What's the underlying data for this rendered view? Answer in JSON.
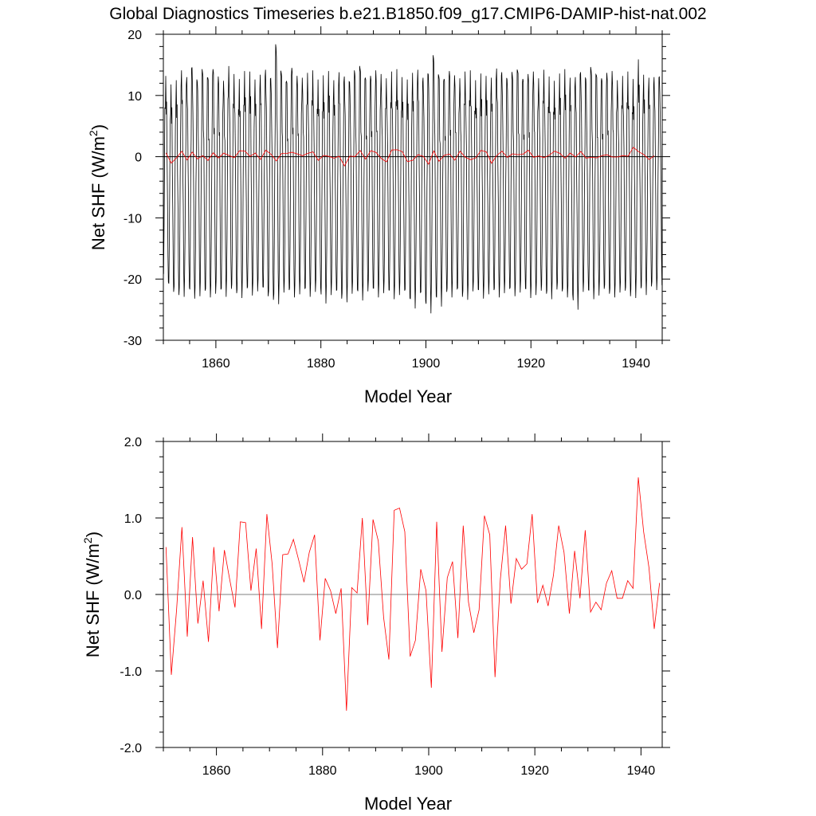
{
  "title": "Global Diagnostics Timeseries b.e21.B1850.f09_g17.CMIP6-DAMIP-hist-nat.002",
  "colors": {
    "monthly": "#000000",
    "annual": "#ff0000",
    "zero_line": "#000000"
  },
  "chart_data": [
    {
      "type": "line",
      "xlabel": "Model Year",
      "ylabel_main": "Net SHF (W/m",
      "ylabel_sup": "2",
      "ylabel_close": ")",
      "xlim": [
        1850,
        1945
      ],
      "ylim": [
        -30,
        20
      ],
      "x_ticks": [
        1860,
        1880,
        1900,
        1920,
        1940
      ],
      "x_tick_labels": [
        "1860",
        "1880",
        "1900",
        "1920",
        "1940"
      ],
      "y_ticks": [
        -30,
        -20,
        -10,
        0,
        10,
        20
      ],
      "y_tick_labels": [
        "-30",
        "-20",
        "-10",
        "0",
        "10",
        "20"
      ],
      "reference_line": 0,
      "monthly_series": {
        "start_year": 1850,
        "years": 95,
        "annual_max": [
          13.2,
          11.8,
          12.5,
          14.1,
          13.0,
          14.6,
          12.2,
          13.8,
          12.9,
          14.3,
          13.1,
          12.4,
          14.8,
          13.5,
          12.7,
          14.0,
          13.9,
          12.6,
          13.4,
          14.2,
          12.8,
          17.8,
          13.6,
          12.3,
          14.5,
          13.2,
          12.9,
          13.7,
          14.1,
          12.6,
          13.3,
          14.0,
          12.5,
          13.8,
          13.1,
          12.2,
          13.6,
          14.4,
          12.9,
          13.2,
          14.1,
          13.5,
          12.8,
          13.9,
          14.3,
          13.0,
          12.6,
          13.7,
          14.2,
          12.9,
          13.4,
          16.0,
          13.1,
          12.7,
          14.0,
          13.3,
          12.8,
          13.9,
          14.1,
          12.5,
          13.6,
          13.2,
          12.9,
          14.4,
          13.8,
          12.6,
          13.3,
          14.0,
          12.7,
          13.5,
          13.9,
          12.8,
          14.2,
          13.1,
          12.4,
          13.6,
          14.3,
          12.9,
          13.0,
          13.8,
          12.6,
          14.1,
          13.3,
          12.8,
          13.7,
          14.0,
          12.5,
          13.2,
          13.9,
          12.7,
          15.9,
          13.4,
          12.9,
          13.0,
          13.1
        ],
        "annual_min": [
          -20.5,
          -22.1,
          -22.6,
          -22.9,
          -21.4,
          -23.2,
          -22.8,
          -21.9,
          -23.0,
          -22.4,
          -21.7,
          -22.9,
          -21.6,
          -22.3,
          -23.1,
          -21.5,
          -22.7,
          -22.0,
          -21.3,
          -22.8,
          -23.4,
          -24.1,
          -22.2,
          -21.8,
          -23.0,
          -22.5,
          -21.6,
          -22.9,
          -22.1,
          -21.4,
          -24.0,
          -22.6,
          -21.9,
          -23.2,
          -23.8,
          -22.4,
          -21.7,
          -23.5,
          -22.0,
          -21.5,
          -23.0,
          -22.3,
          -21.8,
          -23.3,
          -22.6,
          -21.9,
          -23.1,
          -24.8,
          -22.2,
          -23.6,
          -25.6,
          -22.8,
          -24.5,
          -22.1,
          -23.0,
          -21.6,
          -22.9,
          -23.4,
          -22.0,
          -21.7,
          -23.2,
          -22.5,
          -21.8,
          -23.0,
          -22.3,
          -21.6,
          -22.8,
          -22.2,
          -21.5,
          -23.1,
          -22.6,
          -21.9,
          -22.4,
          -23.3,
          -21.7,
          -22.0,
          -23.0,
          -22.5,
          -25.0,
          -22.1,
          -21.8,
          -23.3,
          -22.7,
          -21.6,
          -22.4,
          -23.0,
          -22.2,
          -21.9,
          -22.8,
          -23.1,
          -21.5,
          -22.6,
          -21.2,
          -21.8,
          -21.0
        ]
      },
      "annual_series": [
        0.62,
        -1.05,
        -0.2,
        0.88,
        -0.55,
        0.75,
        -0.38,
        0.18,
        -0.62,
        0.62,
        -0.22,
        0.58,
        0.2,
        -0.17,
        0.95,
        0.94,
        0.05,
        0.6,
        -0.45,
        1.05,
        0.4,
        -0.7,
        0.52,
        0.53,
        0.72,
        0.45,
        0.16,
        0.55,
        0.78,
        -0.6,
        0.21,
        0.05,
        -0.25,
        0.08,
        -1.52,
        0.09,
        0.02,
        1.0,
        -0.4,
        0.98,
        0.7,
        -0.3,
        -0.85,
        1.1,
        1.13,
        0.82,
        -0.81,
        -0.6,
        0.33,
        0.05,
        -1.22,
        0.95,
        -0.75,
        0.22,
        0.43,
        -0.57,
        0.9,
        -0.1,
        -0.5,
        -0.2,
        1.03,
        0.78,
        -1.08,
        0.2,
        0.9,
        -0.12,
        0.47,
        0.33,
        0.4,
        1.05,
        -0.11,
        0.12,
        -0.15,
        0.25,
        0.9,
        0.55,
        -0.25,
        0.57,
        -0.05,
        0.84,
        -0.23,
        -0.1,
        -0.2,
        0.15,
        0.31,
        -0.05,
        -0.05,
        0.18,
        0.08,
        1.53,
        0.82,
        0.35,
        -0.45,
        0.15
      ]
    },
    {
      "type": "line",
      "xlabel": "Model Year",
      "ylabel_main": "Net SHF (W/m",
      "ylabel_sup": "2",
      "ylabel_close": ")",
      "xlim": [
        1850,
        1944
      ],
      "ylim": [
        -2.0,
        2.0
      ],
      "x_ticks": [
        1860,
        1880,
        1900,
        1920,
        1940
      ],
      "x_tick_labels": [
        "1860",
        "1880",
        "1900",
        "1920",
        "1940"
      ],
      "y_ticks": [
        -2.0,
        -1.0,
        0.0,
        1.0,
        2.0
      ],
      "y_tick_labels": [
        "-2.0",
        "-1.0",
        "0.0",
        "1.0",
        "2.0"
      ],
      "reference_line": 0,
      "annual_series": [
        0.62,
        -1.05,
        -0.2,
        0.88,
        -0.55,
        0.75,
        -0.38,
        0.18,
        -0.62,
        0.62,
        -0.22,
        0.58,
        0.2,
        -0.17,
        0.95,
        0.94,
        0.05,
        0.6,
        -0.45,
        1.05,
        0.4,
        -0.7,
        0.52,
        0.53,
        0.72,
        0.45,
        0.16,
        0.55,
        0.78,
        -0.6,
        0.21,
        0.05,
        -0.25,
        0.08,
        -1.52,
        0.09,
        0.02,
        1.0,
        -0.4,
        0.98,
        0.7,
        -0.3,
        -0.85,
        1.1,
        1.13,
        0.82,
        -0.81,
        -0.6,
        0.33,
        0.05,
        -1.22,
        0.95,
        -0.75,
        0.22,
        0.43,
        -0.57,
        0.9,
        -0.1,
        -0.5,
        -0.2,
        1.03,
        0.78,
        -1.08,
        0.2,
        0.9,
        -0.12,
        0.47,
        0.33,
        0.4,
        1.05,
        -0.11,
        0.12,
        -0.15,
        0.25,
        0.9,
        0.55,
        -0.25,
        0.57,
        -0.05,
        0.84,
        -0.23,
        -0.1,
        -0.2,
        0.15,
        0.31,
        -0.05,
        -0.05,
        0.18,
        0.08,
        1.53,
        0.82,
        0.35,
        -0.45,
        0.15
      ]
    }
  ]
}
